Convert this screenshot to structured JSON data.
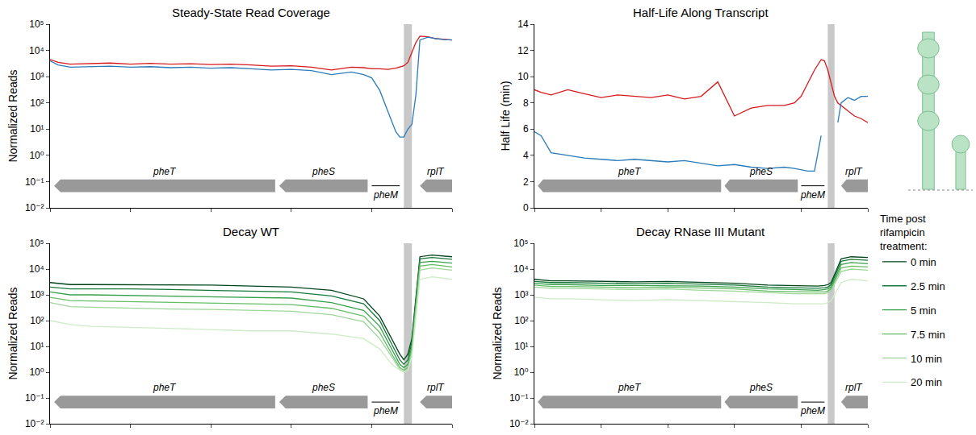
{
  "chart_data": [
    {
      "type": "line",
      "title": "Steady-State Read Coverage",
      "y_label": "Normalized Reads",
      "log": "y",
      "tick_labels": "y",
      "grid": false,
      "xlim": [
        0,
        100
      ],
      "xticks": [
        0,
        20,
        40,
        60,
        80,
        100
      ],
      "ylim": [
        0.01,
        100000
      ],
      "yticks": [
        {
          "value": 0.01,
          "label": "10⁻²"
        },
        {
          "value": 0.1,
          "label": "10⁻¹"
        },
        {
          "value": 1,
          "label": "10⁰"
        },
        {
          "value": 10,
          "label": "10¹"
        },
        {
          "value": 100,
          "label": "10²"
        },
        {
          "value": 1000,
          "label": "10³"
        },
        {
          "value": 10000,
          "label": "10⁴"
        },
        {
          "value": 100000,
          "label": "10⁵"
        }
      ],
      "genes": [
        {
          "name": "pheT",
          "start": 1,
          "end": 56,
          "arrow": true
        },
        {
          "name": "pheS",
          "start": 57,
          "end": 79,
          "arrow": true
        },
        {
          "name": "pheM",
          "start": 80,
          "end": 87,
          "arrow": false
        },
        {
          "name": "rplT",
          "start": 92,
          "end": 100,
          "arrow": true
        }
      ],
      "shaded_region": [
        88,
        90
      ],
      "x": [
        0,
        2,
        5,
        10,
        15,
        20,
        25,
        30,
        35,
        40,
        45,
        50,
        55,
        60,
        65,
        70,
        75,
        78,
        80,
        82,
        84,
        86,
        87,
        88,
        89,
        90,
        91,
        92,
        94,
        96,
        98,
        100
      ],
      "series": [
        {
          "color": "#d7191c",
          "values": [
            4500,
            3500,
            3000,
            3200,
            3300,
            3000,
            3200,
            3000,
            3100,
            2900,
            3000,
            2800,
            2500,
            2600,
            2300,
            1800,
            2300,
            2200,
            2000,
            2000,
            1900,
            2100,
            2300,
            2600,
            3500,
            8000,
            20000,
            35000,
            33000,
            28000,
            26000,
            25000
          ]
        },
        {
          "color": "#2b7bba",
          "values": [
            4000,
            2800,
            2300,
            2400,
            2500,
            2300,
            2400,
            2200,
            2300,
            2100,
            2200,
            2000,
            1800,
            1900,
            1700,
            1200,
            1500,
            1200,
            900,
            300,
            50,
            8,
            5,
            5,
            10,
            15,
            200,
            25000,
            32000,
            28000,
            26000,
            25000
          ]
        }
      ]
    },
    {
      "type": "line",
      "title": "Half-Life Along Transcript",
      "y_label": "Half Life (min)",
      "tick_labels": "y",
      "grid": false,
      "xlim": [
        0,
        100
      ],
      "xticks": [
        0,
        20,
        40,
        60,
        80,
        100
      ],
      "ylim": [
        0,
        14
      ],
      "yticks": [
        0,
        2,
        4,
        6,
        8,
        10,
        12,
        14
      ],
      "genes": [
        {
          "name": "pheT",
          "start": 1,
          "end": 56,
          "arrow": true
        },
        {
          "name": "pheS",
          "start": 57,
          "end": 79,
          "arrow": true
        },
        {
          "name": "pheM",
          "start": 80,
          "end": 87,
          "arrow": false
        },
        {
          "name": "rplT",
          "start": 92,
          "end": 100,
          "arrow": true
        }
      ],
      "shaded_region": [
        88,
        90
      ],
      "x": [
        0,
        2,
        5,
        10,
        15,
        20,
        25,
        30,
        35,
        40,
        45,
        50,
        55,
        60,
        65,
        70,
        75,
        78,
        80,
        82,
        84,
        86,
        87,
        88,
        89,
        90,
        91,
        92,
        94,
        96,
        98,
        100
      ],
      "series": [
        {
          "color": "#d7191c",
          "values": [
            9.0,
            8.8,
            8.6,
            9.0,
            8.7,
            8.4,
            8.6,
            8.5,
            8.4,
            8.6,
            8.3,
            8.5,
            9.6,
            7.0,
            7.6,
            7.8,
            7.8,
            8.0,
            8.5,
            9.5,
            10.5,
            11.3,
            11.2,
            10.5,
            9.5,
            8.5,
            8.0,
            7.8,
            7.4,
            7.0,
            6.8,
            6.5
          ]
        },
        {
          "color": "#2b7bba",
          "values": [
            5.8,
            5.5,
            4.2,
            4.0,
            3.8,
            3.7,
            3.6,
            3.7,
            3.6,
            3.5,
            3.6,
            3.4,
            3.2,
            3.3,
            3.1,
            3.0,
            3.1,
            3.0,
            2.9,
            2.8,
            2.8,
            5.5,
            null,
            null,
            null,
            null,
            6.5,
            8.0,
            8.4,
            8.2,
            8.5,
            8.5
          ]
        }
      ]
    },
    {
      "type": "line",
      "title": "Decay WT",
      "y_label": "Normalized Reads",
      "log": "y",
      "tick_labels": "y",
      "grid": false,
      "legend": "right",
      "legend_title": "Time post rifampicin treatment:",
      "xlim": [
        0,
        100
      ],
      "xticks": [
        0,
        20,
        40,
        60,
        80,
        100
      ],
      "ylim": [
        0.01,
        100000
      ],
      "yticks": [
        {
          "value": 0.01,
          "label": "10⁻²"
        },
        {
          "value": 0.1,
          "label": "10⁻¹"
        },
        {
          "value": 1,
          "label": "10⁰"
        },
        {
          "value": 10,
          "label": "10¹"
        },
        {
          "value": 100,
          "label": "10²"
        },
        {
          "value": 1000,
          "label": "10³"
        },
        {
          "value": 10000,
          "label": "10⁴"
        },
        {
          "value": 100000,
          "label": "10⁵"
        }
      ],
      "genes": [
        {
          "name": "pheT",
          "start": 1,
          "end": 56,
          "arrow": true
        },
        {
          "name": "pheS",
          "start": 57,
          "end": 79,
          "arrow": true
        },
        {
          "name": "pheM",
          "start": 80,
          "end": 87,
          "arrow": false
        },
        {
          "name": "rplT",
          "start": 92,
          "end": 100,
          "arrow": true
        }
      ],
      "shaded_region": [
        88,
        90
      ],
      "x": [
        0,
        5,
        10,
        20,
        30,
        40,
        50,
        60,
        70,
        78,
        82,
        85,
        87,
        88,
        89,
        90,
        92,
        95,
        100
      ],
      "series": [
        {
          "name": "0 min",
          "color": "#00441b",
          "values": [
            3000,
            2500,
            2500,
            2500,
            2400,
            2400,
            2200,
            2000,
            1500,
            700,
            150,
            20,
            5,
            3,
            5,
            20,
            30000,
            35000,
            30000
          ]
        },
        {
          "name": "2.5 min",
          "color": "#17793a",
          "values": [
            2000,
            1700,
            1700,
            1700,
            1600,
            1500,
            1400,
            1300,
            900,
            450,
            100,
            12,
            3,
            2,
            3,
            15,
            25000,
            28000,
            24000
          ]
        },
        {
          "name": "5 min",
          "color": "#36a04d",
          "values": [
            1300,
            1000,
            1000,
            950,
            900,
            850,
            800,
            750,
            500,
            250,
            60,
            8,
            2,
            1.5,
            2,
            10,
            18000,
            20000,
            17000
          ]
        },
        {
          "name": "7.5 min",
          "color": "#65bd66",
          "values": [
            800,
            600,
            580,
            550,
            500,
            480,
            450,
            420,
            300,
            150,
            35,
            5,
            1.5,
            1.2,
            1.5,
            8,
            13000,
            15000,
            12000
          ]
        },
        {
          "name": "10 min",
          "color": "#9ed69a",
          "values": [
            500,
            350,
            330,
            300,
            280,
            270,
            250,
            230,
            170,
            90,
            20,
            4,
            1.3,
            1,
            1.3,
            6,
            9000,
            11000,
            9000
          ]
        },
        {
          "name": "20 min",
          "color": "#cdebc6",
          "values": [
            100,
            70,
            60,
            55,
            50,
            45,
            40,
            40,
            30,
            20,
            8,
            2,
            1.2,
            1,
            1.2,
            4,
            4000,
            5000,
            4000
          ]
        }
      ]
    },
    {
      "type": "line",
      "title": "Decay RNase III Mutant",
      "y_label": "Normalized Reads",
      "log": "y",
      "tick_labels": "y",
      "grid": false,
      "xlim": [
        0,
        100
      ],
      "xticks": [
        0,
        20,
        40,
        60,
        80,
        100
      ],
      "ylim": [
        0.01,
        100000
      ],
      "yticks": [
        {
          "value": 0.01,
          "label": "10⁻²"
        },
        {
          "value": 0.1,
          "label": "10⁻¹"
        },
        {
          "value": 1,
          "label": "10⁰"
        },
        {
          "value": 10,
          "label": "10¹"
        },
        {
          "value": 100,
          "label": "10²"
        },
        {
          "value": 1000,
          "label": "10³"
        },
        {
          "value": 10000,
          "label": "10⁴"
        },
        {
          "value": 100000,
          "label": "10⁵"
        }
      ],
      "genes": [
        {
          "name": "pheT",
          "start": 1,
          "end": 56,
          "arrow": true
        },
        {
          "name": "pheS",
          "start": 57,
          "end": 79,
          "arrow": true
        },
        {
          "name": "pheM",
          "start": 80,
          "end": 87,
          "arrow": false
        },
        {
          "name": "rplT",
          "start": 92,
          "end": 100,
          "arrow": true
        }
      ],
      "shaded_region": [
        88,
        90
      ],
      "x": [
        0,
        5,
        10,
        20,
        30,
        40,
        50,
        60,
        70,
        78,
        82,
        85,
        87,
        88,
        89,
        90,
        92,
        95,
        100
      ],
      "series": [
        {
          "name": "0 min",
          "color": "#00441b",
          "values": [
            4000,
            3500,
            3500,
            3300,
            3200,
            3300,
            3000,
            2800,
            2400,
            2300,
            2200,
            2200,
            2300,
            2500,
            3000,
            6000,
            25000,
            30000,
            28000
          ]
        },
        {
          "name": "2.5 min",
          "color": "#17793a",
          "values": [
            3300,
            3000,
            3000,
            2800,
            2700,
            2800,
            2600,
            2400,
            2000,
            1900,
            1800,
            1800,
            1900,
            2000,
            2500,
            5000,
            20000,
            24000,
            22000
          ]
        },
        {
          "name": "5 min",
          "color": "#36a04d",
          "values": [
            2800,
            2500,
            2500,
            2300,
            2300,
            2300,
            2200,
            2000,
            1700,
            1600,
            1500,
            1500,
            1600,
            1700,
            2000,
            4000,
            15000,
            18000,
            16000
          ]
        },
        {
          "name": "7.5 min",
          "color": "#65bd66",
          "values": [
            2400,
            2100,
            2100,
            2000,
            1900,
            2000,
            1800,
            1700,
            1400,
            1300,
            1300,
            1300,
            1300,
            1400,
            1700,
            3200,
            11000,
            13000,
            12000
          ]
        },
        {
          "name": "10 min",
          "color": "#9ed69a",
          "values": [
            2000,
            1800,
            1800,
            1700,
            1600,
            1700,
            1500,
            1400,
            1200,
            1100,
            1100,
            1100,
            1100,
            1200,
            1400,
            2600,
            8000,
            10000,
            9000
          ]
        },
        {
          "name": "20 min",
          "color": "#cdebc6",
          "values": [
            800,
            700,
            700,
            650,
            600,
            650,
            600,
            550,
            500,
            450,
            450,
            450,
            450,
            500,
            600,
            1000,
            3000,
            4000,
            3500
          ]
        }
      ]
    }
  ]
}
